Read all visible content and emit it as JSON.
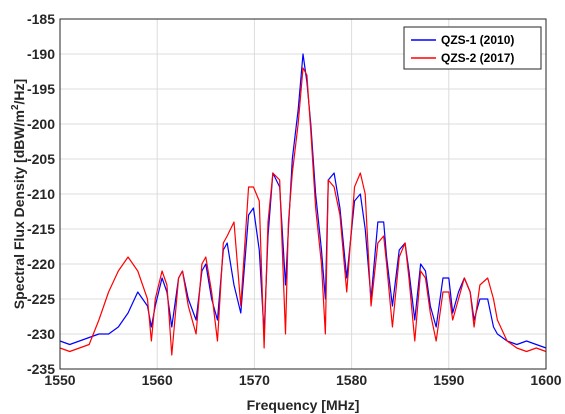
{
  "chart_data": {
    "type": "line",
    "title": "",
    "xlabel": "Frequency [MHz]",
    "ylabel": "Spectral Flux Density [dBW/m",
    "ylabel_sup": "2",
    "ylabel_suffix": "/Hz]",
    "xlim": [
      1550,
      1600
    ],
    "ylim": [
      -235,
      -185
    ],
    "xticks": [
      "1550",
      "1560",
      "1570",
      "1580",
      "1590",
      "1600"
    ],
    "yticks": [
      "-185",
      "-190",
      "-195",
      "-200",
      "-205",
      "-210",
      "-215",
      "-220",
      "-225",
      "-230",
      "-235"
    ],
    "grid": true,
    "legend_position": "top-right",
    "series": [
      {
        "name": "QZS-1 (2010)",
        "color": "#0000ff",
        "x": [
          1550,
          1551,
          1552,
          1553,
          1554,
          1555,
          1556,
          1557,
          1558,
          1559,
          1559.4,
          1559.8,
          1560.5,
          1561,
          1561.5,
          1562.2,
          1562.6,
          1563.2,
          1564,
          1564.6,
          1565,
          1565.6,
          1566.2,
          1566.8,
          1567.2,
          1567.9,
          1568.6,
          1569.4,
          1569.9,
          1570.5,
          1571,
          1571.4,
          1571.9,
          1572.6,
          1573.2,
          1573.5,
          1573.9,
          1574.5,
          1575,
          1575.4,
          1575.8,
          1576.3,
          1576.9,
          1577.3,
          1577.6,
          1578.2,
          1578.8,
          1579.5,
          1580.3,
          1580.9,
          1581.4,
          1582,
          1582.7,
          1583.3,
          1583.6,
          1584.2,
          1584.9,
          1585.5,
          1585.9,
          1586.5,
          1587.1,
          1587.6,
          1588.1,
          1588.7,
          1589.4,
          1590,
          1590.4,
          1591,
          1591.6,
          1592.2,
          1592.6,
          1593.2,
          1594,
          1594.6,
          1595,
          1596,
          1597,
          1598,
          1599,
          1600
        ],
        "values": [
          -231,
          -231.5,
          -231,
          -230.5,
          -230,
          -230,
          -229,
          -227,
          -224,
          -226,
          -229,
          -226,
          -222,
          -224,
          -229,
          -222,
          -221,
          -225,
          -228,
          -221,
          -220,
          -225,
          -228,
          -218,
          -217,
          -223,
          -227,
          -213,
          -212,
          -218,
          -230,
          -216,
          -207,
          -209,
          -223,
          -215,
          -205,
          -198,
          -190,
          -194,
          -200,
          -210,
          -218,
          -225,
          -208,
          -207,
          -212,
          -222,
          -211,
          -210,
          -215,
          -225,
          -214,
          -214,
          -219,
          -226,
          -218,
          -217,
          -221,
          -228,
          -220,
          -221,
          -226,
          -229,
          -222,
          -222,
          -227,
          -224,
          -222,
          -224,
          -228,
          -225,
          -225,
          -229,
          -230,
          -231,
          -231.5,
          -231,
          -231.5,
          -232
        ]
      },
      {
        "name": "QZS-2 (2017)",
        "color": "#ff0000",
        "x": [
          1550,
          1551,
          1552,
          1553,
          1554,
          1555,
          1556,
          1557,
          1558,
          1559,
          1559.4,
          1559.8,
          1560.5,
          1561,
          1561.5,
          1562.2,
          1562.6,
          1563.2,
          1564,
          1564.6,
          1565,
          1565.6,
          1566.2,
          1566.8,
          1567.2,
          1567.9,
          1568.6,
          1569.4,
          1569.9,
          1570.5,
          1571,
          1571.4,
          1571.9,
          1572.6,
          1573.2,
          1573.5,
          1573.9,
          1574.5,
          1575,
          1575.4,
          1575.8,
          1576.3,
          1576.9,
          1577.3,
          1577.6,
          1578.2,
          1578.8,
          1579.5,
          1580.3,
          1580.9,
          1581.4,
          1582,
          1582.7,
          1583.3,
          1583.6,
          1584.2,
          1584.9,
          1585.5,
          1585.9,
          1586.5,
          1587.1,
          1587.6,
          1588.1,
          1588.7,
          1589.4,
          1590,
          1590.4,
          1591,
          1591.6,
          1592.2,
          1592.6,
          1593.2,
          1594,
          1594.6,
          1595,
          1596,
          1597,
          1598,
          1599,
          1600
        ],
        "values": [
          -232,
          -232.5,
          -232,
          -231.5,
          -228,
          -224,
          -221,
          -219,
          -221,
          -225,
          -231,
          -225,
          -221,
          -223,
          -233,
          -222,
          -221,
          -226,
          -230,
          -220,
          -219,
          -224,
          -231,
          -217,
          -216,
          -214,
          -226,
          -209,
          -209,
          -211,
          -232,
          -214,
          -207,
          -208,
          -230,
          -214,
          -207,
          -200,
          -192,
          -193,
          -201,
          -212,
          -220,
          -230,
          -208,
          -209,
          -213,
          -224,
          -209,
          -207,
          -210,
          -226,
          -217,
          -216,
          -220,
          -229,
          -219,
          -217,
          -222,
          -231,
          -221,
          -222,
          -227,
          -231,
          -224,
          -224,
          -228,
          -225,
          -222,
          -224,
          -229,
          -223,
          -222,
          -225,
          -228,
          -231,
          -232,
          -232.5,
          -232,
          -232.5
        ]
      }
    ]
  }
}
